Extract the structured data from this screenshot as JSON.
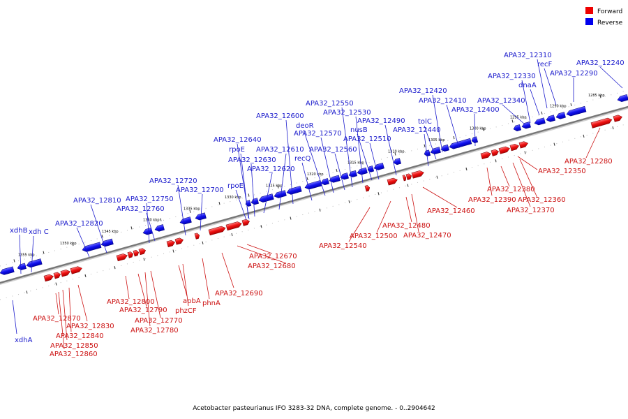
{
  "legend": [
    {
      "label": "Forward",
      "color": "#ee0000"
    },
    {
      "label": "Reverse",
      "color": "#0000ee"
    }
  ],
  "caption": "Acetobacter pasteurianus IFO 3283-32 DNA, complete genome. - 0..2904642",
  "scale_ticks": [
    "1285 kbp",
    "1290 kbp",
    "1295 kbp",
    "1300 kbp",
    "1305 kbp",
    "1310 kbp",
    "1315 kbp",
    "1320 kbp",
    "1325 kbp",
    "1330 kbp",
    "1335 kbp",
    "1340 kbp",
    "1345 kbp",
    "1350 kbp",
    "1355 kbp"
  ],
  "reverse_genes": [
    "APA32_12240",
    "APA32_12290",
    "recF",
    "APA32_12310",
    "dnaA",
    "APA32_12330",
    "APA32_12340",
    "APA32_12400",
    "APA32_12410",
    "APA32_12420",
    "tolC",
    "APA32_12440",
    "APA32_12490",
    "APA32_12510",
    "nusB",
    "APA32_12530",
    "APA32_12550",
    "APA32_12560",
    "APA32_12570",
    "deoR",
    "recQ",
    "APA32_12600",
    "APA32_12610",
    "APA32_12620",
    "APA32_12630",
    "rpoE",
    "APA32_12640",
    "rpoE",
    "APA32_12700",
    "APA32_12720",
    "APA32_12750",
    "APA32_12760",
    "APA32_12810",
    "APA32_12820",
    "xdh C",
    "xdhB",
    "xdhA"
  ],
  "forward_genes": [
    "APA32_12280",
    "APA32_12350",
    "APA32_12360",
    "APA32_12370",
    "APA32_12380",
    "APA32_12390",
    "APA32_12460",
    "APA32_12470",
    "APA32_12480",
    "APA32_12500",
    "APA32_12540",
    "APA32_12670",
    "APA32_12680",
    "APA32_12690",
    "phnA",
    "phzCF",
    "apbA",
    "APA32_12770",
    "APA32_12780",
    "APA32_12790",
    "APA32_12800",
    "APA32_12830",
    "APA32_12840",
    "APA32_12850",
    "APA32_12860",
    "APA32_12870"
  ]
}
